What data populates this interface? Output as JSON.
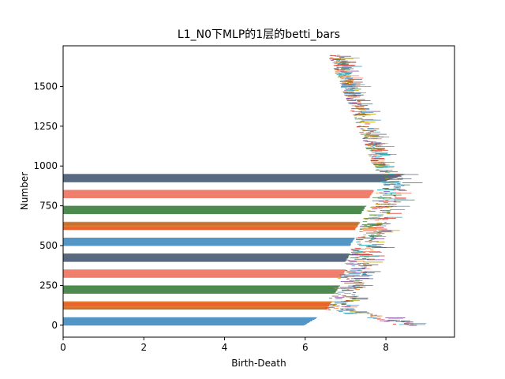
{
  "chart_data": {
    "type": "bar",
    "orientation": "horizontal",
    "title": "L1_N0下MLP的1层的betti_bars",
    "xlabel": "Birth-Death",
    "ylabel": "Number",
    "xlim": [
      0,
      9.7
    ],
    "ylim": [
      -75,
      1755
    ],
    "xticks": [
      0,
      2,
      4,
      6,
      8
    ],
    "yticks": [
      0,
      250,
      500,
      750,
      1000,
      1250,
      1500
    ],
    "grid": false,
    "legend": "none",
    "colors": [
      "#5497c6",
      "#ee8530",
      "#e4352c",
      "#8a5a3a",
      "#4e8b50",
      "#f07f6e",
      "#596a80",
      "#8b4fa8",
      "#c4a200",
      "#33b3c4"
    ],
    "series": [
      {
        "y_start": 0,
        "y_end": 50,
        "x_min": 5.9,
        "x_max": 6.3,
        "color": "#5497c6",
        "striped": false
      },
      {
        "y_start": 100,
        "y_end": 150,
        "x_min": 6.5,
        "x_max": 6.65,
        "color": "#ee8530",
        "striped": true
      },
      {
        "y_start": 200,
        "y_end": 250,
        "x_min": 6.7,
        "x_max": 6.85,
        "color": "#4e8b50",
        "striped": false
      },
      {
        "y_start": 300,
        "y_end": 350,
        "x_min": 6.85,
        "x_max": 7.0,
        "color": "#f07f6e",
        "striped": false
      },
      {
        "y_start": 400,
        "y_end": 450,
        "x_min": 6.97,
        "x_max": 7.1,
        "color": "#596a80",
        "striped": false
      },
      {
        "y_start": 500,
        "y_end": 550,
        "x_min": 7.08,
        "x_max": 7.22,
        "color": "#5497c6",
        "striped": false
      },
      {
        "y_start": 600,
        "y_end": 650,
        "x_min": 7.2,
        "x_max": 7.35,
        "color": "#ee8530",
        "striped": true
      },
      {
        "y_start": 700,
        "y_end": 750,
        "x_min": 7.35,
        "x_max": 7.5,
        "color": "#4e8b50",
        "striped": false
      },
      {
        "y_start": 800,
        "y_end": 850,
        "x_min": 7.55,
        "x_max": 7.7,
        "color": "#f07f6e",
        "striped": false
      },
      {
        "y_start": 900,
        "y_end": 950,
        "x_min": 7.8,
        "x_max": 8.5,
        "color": "#596a80",
        "striped": false
      }
    ],
    "scattered_bars_count": 780,
    "scattered_bars_y_range": [
      0,
      1700
    ],
    "scattered_bars_birth_range": [
      6.3,
      8.9
    ]
  }
}
